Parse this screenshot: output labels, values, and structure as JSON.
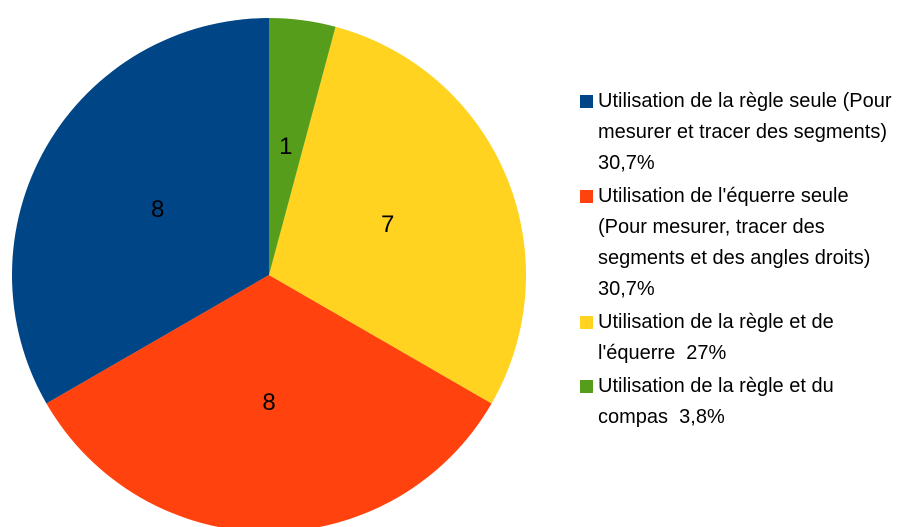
{
  "chart_data": {
    "type": "pie",
    "categories": [
      "Utilisation de la règle seule (Pour mesurer et tracer des segments)  30,7%",
      "Utilisation de l'équerre seule (Pour mesurer, tracer des segments et des angles droits)  30,7%",
      "Utilisation de la règle et de l'équerre  27%",
      "Utilisation de la règle et du compas  3,8%"
    ],
    "values": [
      8,
      8,
      7,
      1
    ],
    "colors": [
      "#004586",
      "#ff420e",
      "#ffd320",
      "#579d1c"
    ],
    "start_angle": 90,
    "direction": "counterclockwise",
    "legend": "right"
  }
}
